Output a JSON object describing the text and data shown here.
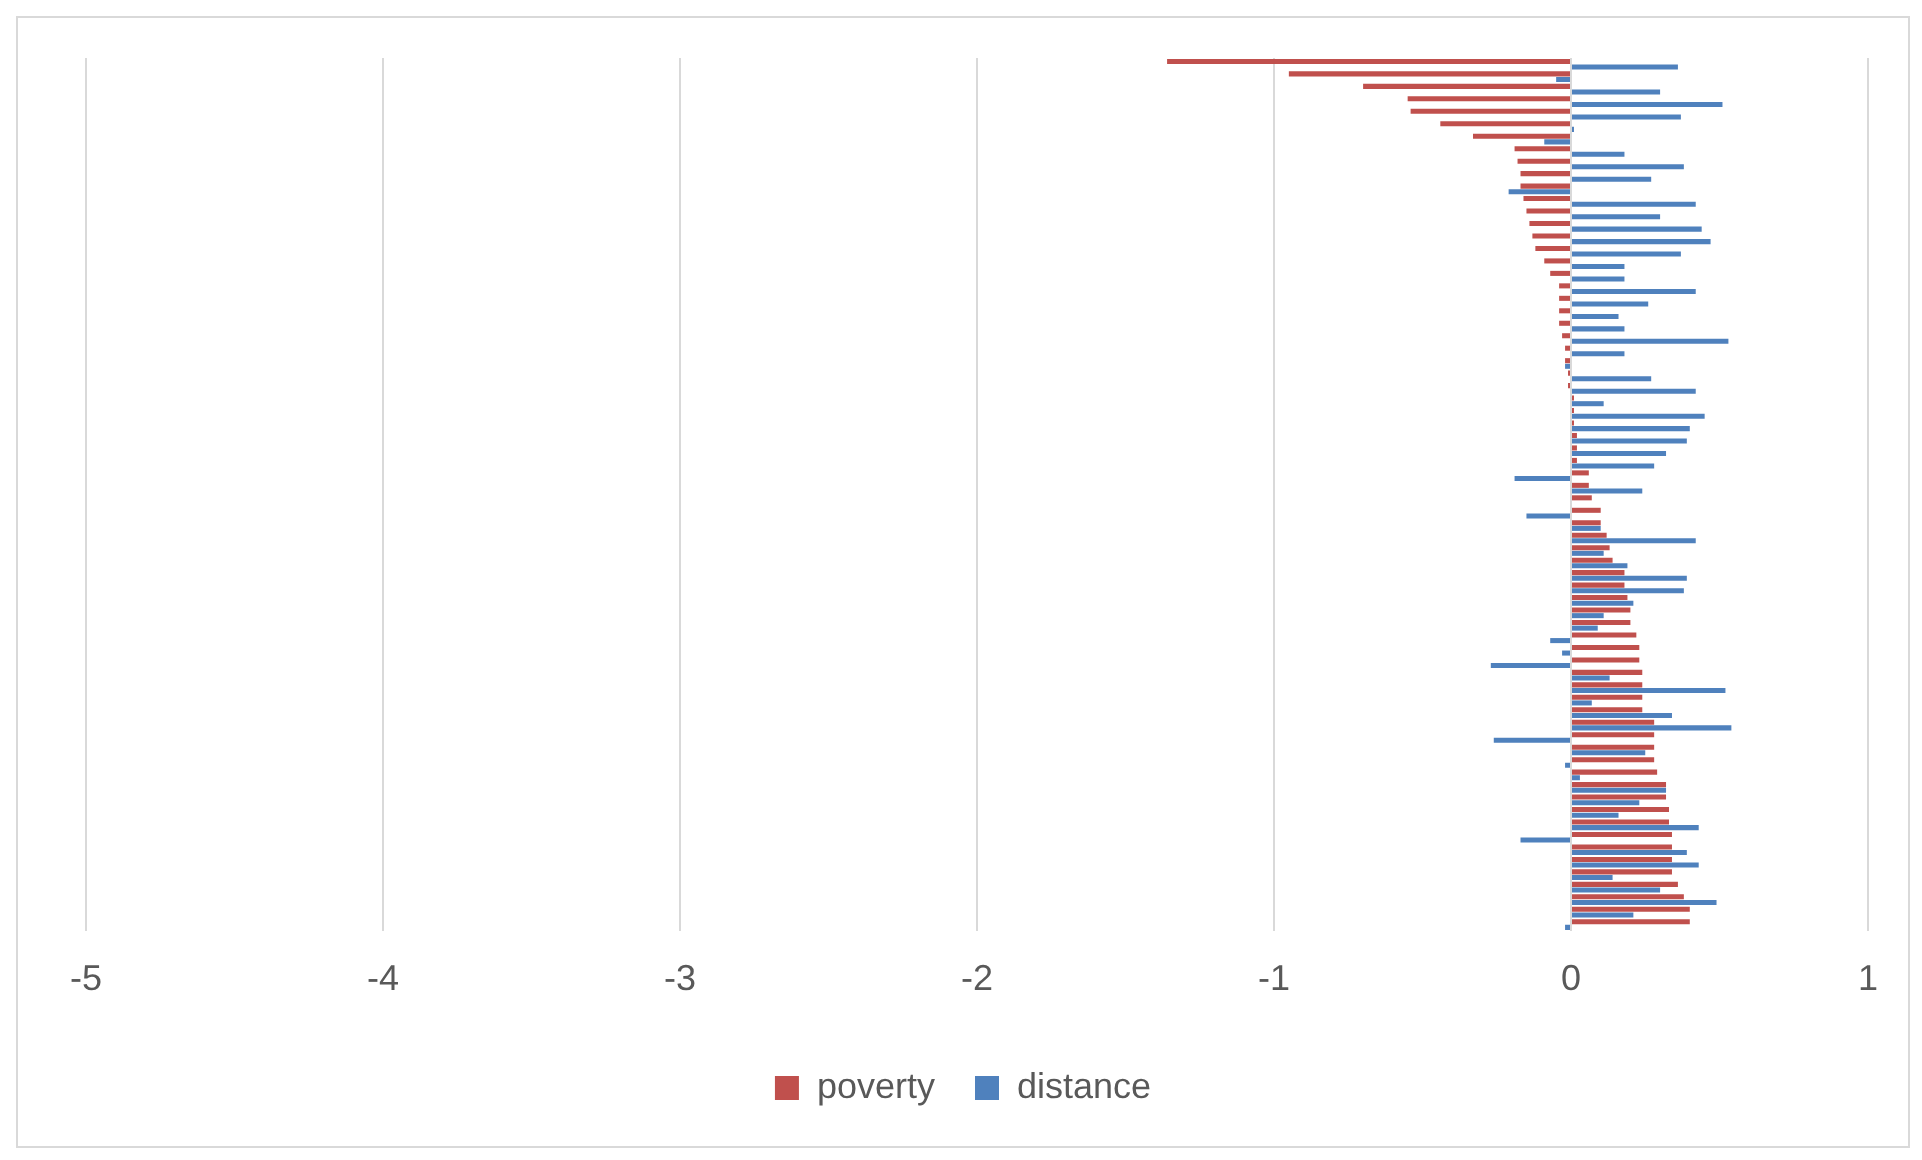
{
  "chart_data": {
    "type": "bar",
    "orientation": "horizontal",
    "categories": [
      null,
      null,
      null,
      null,
      null,
      null,
      null,
      null,
      null,
      null,
      null,
      null,
      null,
      null,
      null,
      null,
      null,
      null,
      null,
      null,
      null,
      null,
      null,
      null,
      null,
      null,
      null,
      null,
      null,
      null,
      null,
      null,
      null,
      null,
      null,
      null,
      null,
      null,
      null,
      null,
      null,
      null,
      null,
      null,
      null,
      null,
      null,
      null,
      null,
      null,
      null,
      null,
      null,
      null,
      null,
      null,
      null,
      null,
      null,
      null,
      null,
      null,
      null,
      null,
      null,
      null,
      null,
      null,
      null,
      null
    ],
    "series": [
      {
        "name": "poverty",
        "color": "#c0504d",
        "values": [
          -1.36,
          -0.95,
          -0.7,
          -0.55,
          -0.54,
          -0.44,
          -0.33,
          -0.19,
          -0.18,
          -0.17,
          -0.17,
          -0.16,
          -0.15,
          -0.14,
          -0.13,
          -0.12,
          -0.09,
          -0.07,
          -0.04,
          -0.04,
          -0.04,
          -0.04,
          -0.03,
          -0.02,
          -0.02,
          -0.01,
          -0.01,
          0.01,
          0.01,
          0.01,
          0.02,
          0.02,
          0.02,
          0.06,
          0.06,
          0.07,
          0.1,
          0.1,
          0.12,
          0.13,
          0.14,
          0.18,
          0.18,
          0.19,
          0.2,
          0.2,
          0.22,
          0.23,
          0.23,
          0.24,
          0.24,
          0.24,
          0.24,
          0.28,
          0.28,
          0.28,
          0.28,
          0.29,
          0.32,
          0.32,
          0.33,
          0.33,
          0.34,
          0.34,
          0.34,
          0.34,
          0.36,
          0.38,
          0.4,
          0.4
        ]
      },
      {
        "name": "distance",
        "color": "#4f81bd",
        "values": [
          0.36,
          -0.05,
          0.3,
          0.51,
          0.37,
          0.01,
          -0.09,
          0.18,
          0.38,
          0.27,
          -0.21,
          0.42,
          0.3,
          0.44,
          0.47,
          0.37,
          0.18,
          0.18,
          0.42,
          0.26,
          0.16,
          0.18,
          0.53,
          0.18,
          -0.02,
          0.27,
          0.42,
          0.11,
          0.45,
          0.4,
          0.39,
          0.32,
          0.28,
          -0.19,
          0.24,
          0,
          -0.15,
          0.1,
          0.42,
          0.11,
          0.19,
          0.39,
          0.38,
          0.21,
          0.11,
          0.09,
          -0.07,
          -0.03,
          -0.27,
          0.13,
          0.52,
          0.07,
          0.34,
          0.54,
          -0.26,
          0.25,
          -0.02,
          0.03,
          0.32,
          0.23,
          0.16,
          0.43,
          -0.17,
          0.39,
          0.43,
          0.14,
          0.3,
          0.49,
          0.21,
          -0.02
        ]
      }
    ],
    "xlim": [
      -5,
      1
    ],
    "xticks": [
      -5,
      -4,
      -3,
      -2,
      -1,
      0,
      1
    ],
    "grid": "x",
    "legend": "bottom"
  }
}
